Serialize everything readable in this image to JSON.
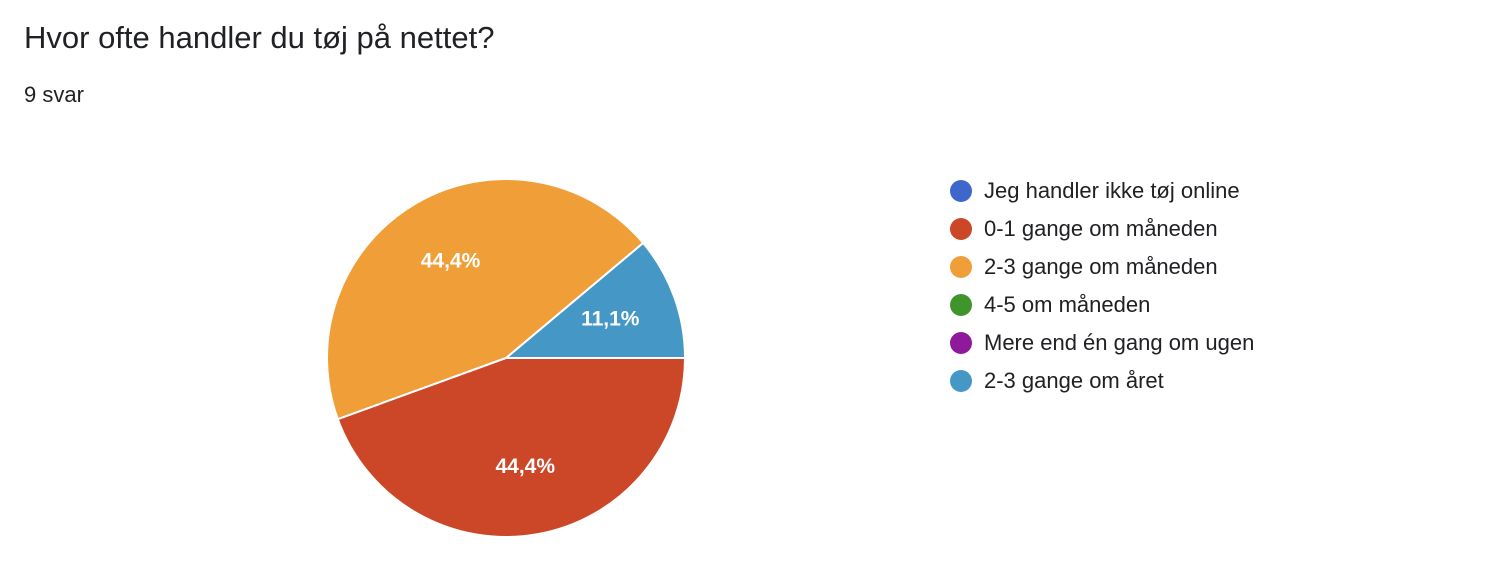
{
  "title": "Hvor ofte handler du tøj på nettet?",
  "subtitle": "9 svar",
  "chart_data": {
    "type": "pie",
    "title": "Hvor ofte handler du tøj på nettet?",
    "total_responses": 9,
    "legend_position": "right",
    "slices": [
      {
        "label": "Jeg handler ikke tøj online",
        "value": 0,
        "percent": 0,
        "percent_label": "",
        "color": "#3f67cb"
      },
      {
        "label": "0-1 gange om måneden",
        "value": 4,
        "percent": 44.4,
        "percent_label": "44,4%",
        "color": "#cc4628"
      },
      {
        "label": "2-3 gange om måneden",
        "value": 4,
        "percent": 44.4,
        "percent_label": "44,4%",
        "color": "#f09e38"
      },
      {
        "label": "4-5 om måneden",
        "value": 0,
        "percent": 0,
        "percent_label": "",
        "color": "#3f952b"
      },
      {
        "label": "Mere end én gang om ugen",
        "value": 0,
        "percent": 0,
        "percent_label": "",
        "color": "#8e1a9b"
      },
      {
        "label": "2-3 gange om året",
        "value": 1,
        "percent": 11.1,
        "percent_label": "11,1%",
        "color": "#4598c6"
      }
    ]
  }
}
